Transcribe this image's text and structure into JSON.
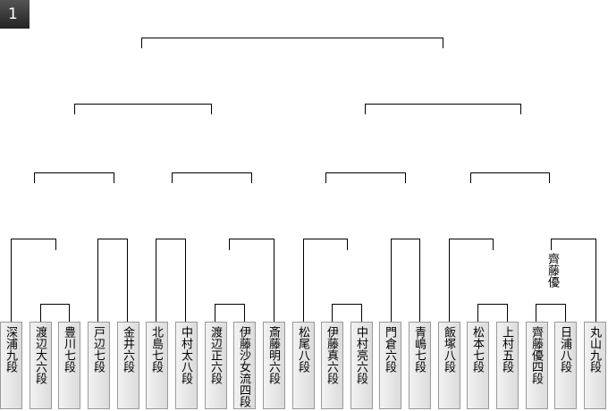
{
  "round_label": "1",
  "players": [
    "深浦九段",
    "渡辺大六段",
    "豊川七段",
    "戸辺七段",
    "金井六段",
    "北島七段",
    "中村太八段",
    "渡辺正六段",
    "伊藤沙女流四段",
    "斎藤明六段",
    "松尾八段",
    "伊藤真六段",
    "中村亮六段",
    "門倉六段",
    "青嶋七段",
    "飯塚八段",
    "松本七段",
    "上村五段",
    "齊藤優四段",
    "日浦八段",
    "丸山九段"
  ],
  "winner_labels": [
    "齊藤優"
  ]
}
